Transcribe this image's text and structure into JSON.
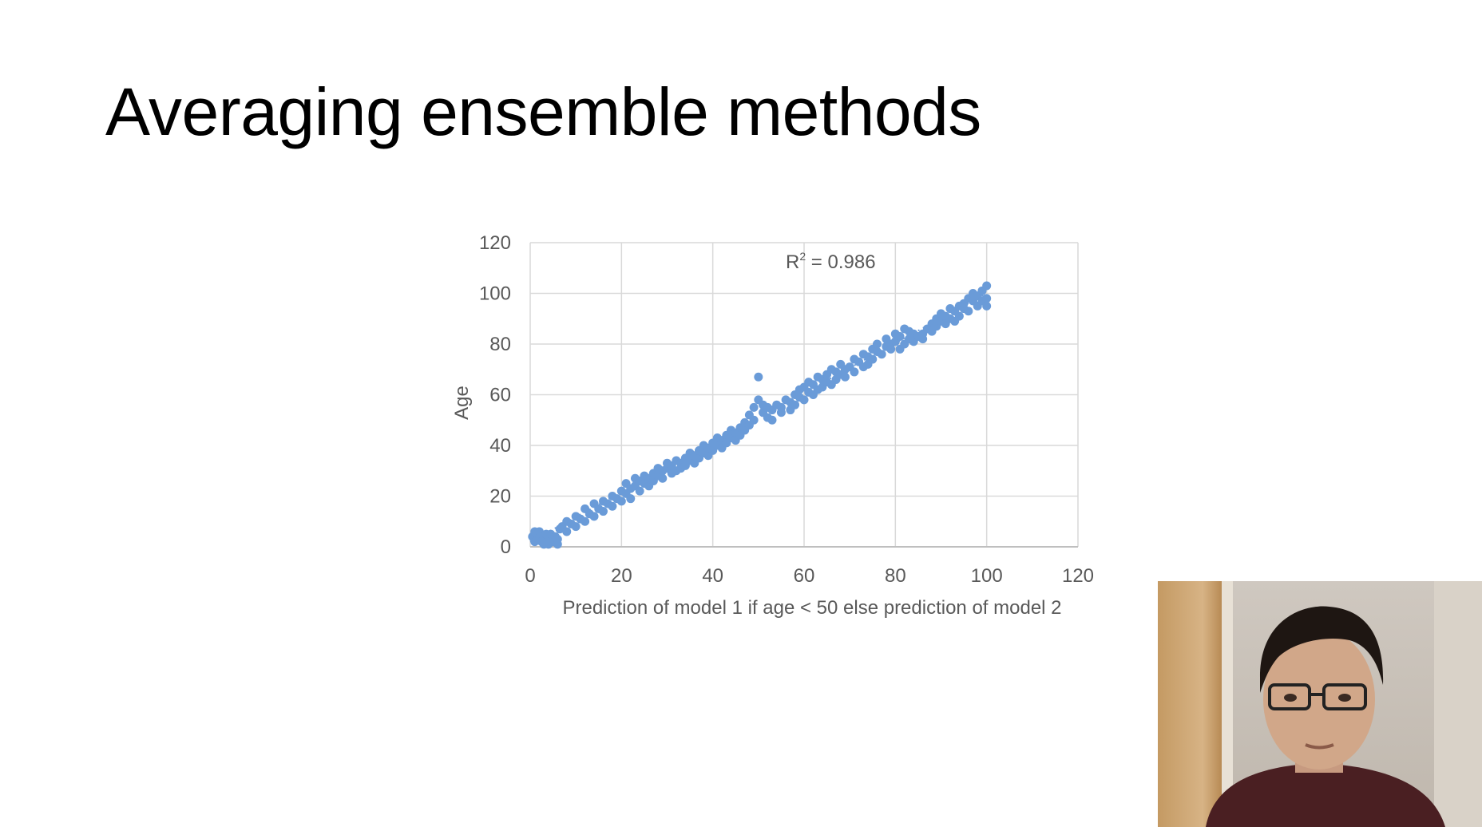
{
  "slide": {
    "title": "Averaging ensemble methods"
  },
  "chart_data": {
    "type": "scatter",
    "xlabel": "Prediction of model 1 if age < 50 else prediction of model 2",
    "ylabel": "Age",
    "xlim": [
      0,
      120
    ],
    "ylim": [
      0,
      120
    ],
    "xticks": [
      0,
      20,
      40,
      60,
      80,
      100,
      120
    ],
    "yticks": [
      0,
      20,
      40,
      60,
      80,
      100,
      120
    ],
    "grid": true,
    "legend": "none",
    "annotation": {
      "base": "R",
      "sup": "2",
      "rest": " = 0.986"
    },
    "trendline": {
      "from": [
        0,
        2
      ],
      "to": [
        100,
        100
      ],
      "style": "dotted"
    },
    "marker_color": "#6a9bd8",
    "points": [
      [
        0.5,
        4
      ],
      [
        1,
        6
      ],
      [
        1,
        2
      ],
      [
        1.5,
        5
      ],
      [
        2,
        3
      ],
      [
        2,
        6
      ],
      [
        2.5,
        2
      ],
      [
        3,
        4
      ],
      [
        3,
        1
      ],
      [
        3.5,
        5
      ],
      [
        4,
        3
      ],
      [
        4,
        1
      ],
      [
        4.5,
        5
      ],
      [
        5,
        2
      ],
      [
        5.5,
        4
      ],
      [
        6,
        1
      ],
      [
        6,
        3
      ],
      [
        6.5,
        7
      ],
      [
        7,
        8
      ],
      [
        8,
        10
      ],
      [
        8,
        6
      ],
      [
        9,
        9
      ],
      [
        10,
        12
      ],
      [
        10,
        8
      ],
      [
        11,
        11
      ],
      [
        12,
        10
      ],
      [
        12,
        15
      ],
      [
        13,
        13
      ],
      [
        14,
        12
      ],
      [
        14,
        17
      ],
      [
        15,
        15
      ],
      [
        16,
        14
      ],
      [
        16,
        18
      ],
      [
        17,
        17
      ],
      [
        18,
        16
      ],
      [
        18,
        20
      ],
      [
        19,
        19
      ],
      [
        20,
        22
      ],
      [
        20,
        18
      ],
      [
        21,
        21
      ],
      [
        21,
        25
      ],
      [
        22,
        23
      ],
      [
        22,
        19
      ],
      [
        23,
        24
      ],
      [
        23,
        27
      ],
      [
        24,
        22
      ],
      [
        24,
        26
      ],
      [
        25,
        25
      ],
      [
        25,
        28
      ],
      [
        26,
        24
      ],
      [
        26,
        27
      ],
      [
        27,
        29
      ],
      [
        27,
        26
      ],
      [
        28,
        28
      ],
      [
        28,
        31
      ],
      [
        29,
        27
      ],
      [
        29,
        30
      ],
      [
        30,
        31
      ],
      [
        30,
        33
      ],
      [
        31,
        29
      ],
      [
        31,
        32
      ],
      [
        32,
        30
      ],
      [
        32,
        34
      ],
      [
        33,
        33
      ],
      [
        33,
        31
      ],
      [
        34,
        35
      ],
      [
        34,
        32
      ],
      [
        35,
        34
      ],
      [
        35,
        37
      ],
      [
        36,
        33
      ],
      [
        36,
        36
      ],
      [
        37,
        35
      ],
      [
        37,
        38
      ],
      [
        38,
        37
      ],
      [
        38,
        40
      ],
      [
        39,
        36
      ],
      [
        39,
        39
      ],
      [
        40,
        41
      ],
      [
        40,
        38
      ],
      [
        41,
        40
      ],
      [
        41,
        43
      ],
      [
        42,
        39
      ],
      [
        42,
        42
      ],
      [
        43,
        44
      ],
      [
        43,
        41
      ],
      [
        44,
        43
      ],
      [
        44,
        46
      ],
      [
        45,
        45
      ],
      [
        45,
        42
      ],
      [
        46,
        47
      ],
      [
        46,
        44
      ],
      [
        47,
        46
      ],
      [
        47,
        49
      ],
      [
        48,
        48
      ],
      [
        48,
        52
      ],
      [
        49,
        50
      ],
      [
        49,
        55
      ],
      [
        50,
        67
      ],
      [
        50,
        58
      ],
      [
        51,
        53
      ],
      [
        51,
        56
      ],
      [
        52,
        51
      ],
      [
        52,
        55
      ],
      [
        53,
        54
      ],
      [
        53,
        50
      ],
      [
        54,
        56
      ],
      [
        55,
        55
      ],
      [
        55,
        53
      ],
      [
        56,
        58
      ],
      [
        57,
        57
      ],
      [
        57,
        54
      ],
      [
        58,
        60
      ],
      [
        58,
        56
      ],
      [
        59,
        59
      ],
      [
        59,
        62
      ],
      [
        60,
        63
      ],
      [
        60,
        58
      ],
      [
        61,
        61
      ],
      [
        61,
        65
      ],
      [
        62,
        60
      ],
      [
        62,
        64
      ],
      [
        63,
        62
      ],
      [
        63,
        67
      ],
      [
        64,
        66
      ],
      [
        64,
        63
      ],
      [
        65,
        65
      ],
      [
        65,
        68
      ],
      [
        66,
        64
      ],
      [
        66,
        70
      ],
      [
        67,
        69
      ],
      [
        67,
        66
      ],
      [
        68,
        68
      ],
      [
        68,
        72
      ],
      [
        69,
        70
      ],
      [
        69,
        67
      ],
      [
        70,
        71
      ],
      [
        71,
        74
      ],
      [
        71,
        69
      ],
      [
        72,
        73
      ],
      [
        73,
        71
      ],
      [
        73,
        76
      ],
      [
        74,
        75
      ],
      [
        74,
        72
      ],
      [
        75,
        78
      ],
      [
        75,
        74
      ],
      [
        76,
        80
      ],
      [
        76,
        77
      ],
      [
        77,
        76
      ],
      [
        78,
        79
      ],
      [
        78,
        82
      ],
      [
        79,
        78
      ],
      [
        79,
        80
      ],
      [
        80,
        84
      ],
      [
        80,
        81
      ],
      [
        81,
        83
      ],
      [
        81,
        78
      ],
      [
        82,
        86
      ],
      [
        82,
        80
      ],
      [
        83,
        82
      ],
      [
        83,
        85
      ],
      [
        84,
        84
      ],
      [
        84,
        81
      ],
      [
        85,
        83
      ],
      [
        86,
        82
      ],
      [
        86,
        84
      ],
      [
        87,
        86
      ],
      [
        88,
        88
      ],
      [
        88,
        85
      ],
      [
        89,
        90
      ],
      [
        89,
        87
      ],
      [
        90,
        92
      ],
      [
        90,
        89
      ],
      [
        91,
        91
      ],
      [
        91,
        88
      ],
      [
        92,
        90
      ],
      [
        92,
        94
      ],
      [
        93,
        93
      ],
      [
        93,
        89
      ],
      [
        94,
        95
      ],
      [
        94,
        91
      ],
      [
        95,
        94
      ],
      [
        95,
        96
      ],
      [
        96,
        98
      ],
      [
        96,
        93
      ],
      [
        97,
        97
      ],
      [
        97,
        100
      ],
      [
        98,
        99
      ],
      [
        98,
        95
      ],
      [
        99,
        101
      ],
      [
        99,
        97
      ],
      [
        100,
        103
      ],
      [
        100,
        98
      ],
      [
        100,
        95
      ]
    ]
  }
}
